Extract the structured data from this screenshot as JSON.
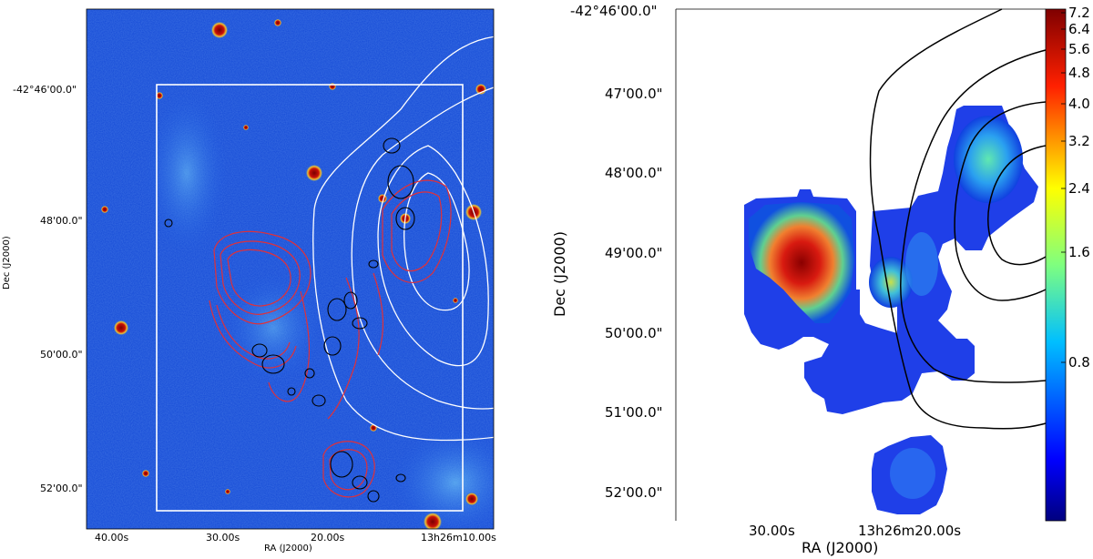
{
  "left_panel": {
    "xlabel": "RA (J2000)",
    "ylabel": "Dec (J2000)",
    "ra_ticks": [
      "40.00s",
      "30.00s",
      "20.00s",
      "13h26m10.00s"
    ],
    "dec_ticks": [
      "-42°46'00.0\"",
      "48'00.0\"",
      "50'00.0\"",
      "52'00.0\""
    ],
    "image_colormap": "blue-jet",
    "contour_colors": {
      "outer": "#ffffff",
      "filament": "#e0303a",
      "knots": "#000000"
    }
  },
  "right_panel": {
    "xlabel": "RA (J2000)",
    "ylabel": "Dec (J2000)",
    "ra_ticks": [
      "30.00s",
      "13h26m20.00s"
    ],
    "dec_ticks": [
      "-42°46'00.0\"",
      "47'00.0\"",
      "48'00.0\"",
      "49'00.0\"",
      "50'00.0\"",
      "51'00.0\"",
      "52'00.0\""
    ],
    "colorbar_ticks": [
      "7.2",
      "6.4",
      "5.6",
      "4.8",
      "4.0",
      "3.2",
      "2.4",
      "1.6",
      "0.8"
    ],
    "contour_color": "#000000"
  }
}
